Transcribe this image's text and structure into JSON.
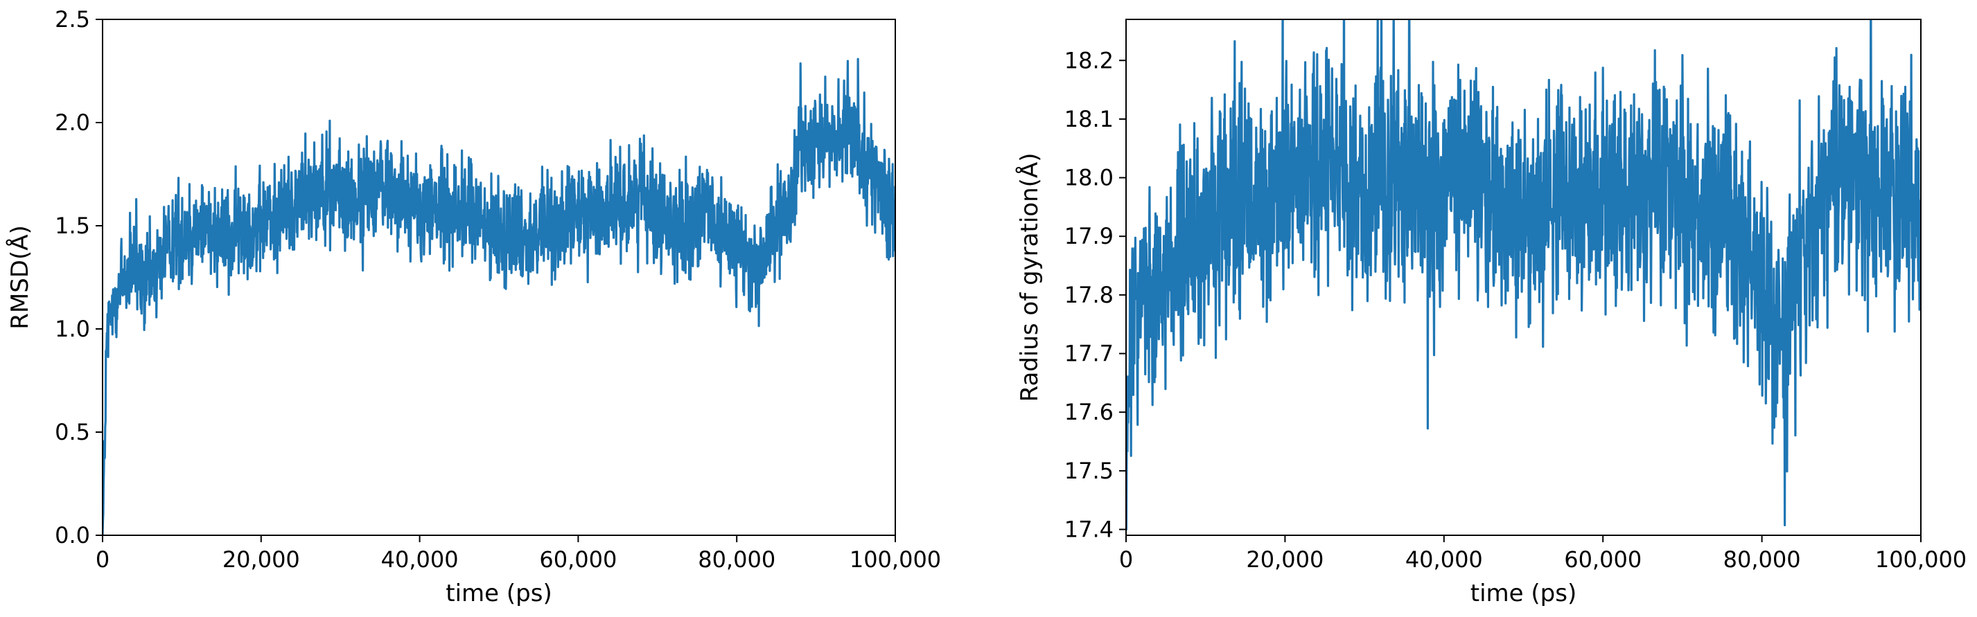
{
  "chart_data": [
    {
      "type": "line",
      "title": "",
      "xlabel": "time (ps)",
      "ylabel": "RMSD(Å)",
      "xlim": [
        0,
        100000
      ],
      "ylim": [
        0,
        2.5
      ],
      "xticks": [
        0,
        20000,
        40000,
        60000,
        80000,
        100000
      ],
      "xtick_labels": [
        "0",
        "20,000",
        "40,000",
        "60,000",
        "80,000",
        "100,000"
      ],
      "yticks": [
        0.0,
        0.5,
        1.0,
        1.5,
        2.0,
        2.5
      ],
      "ytick_labels": [
        "0.0",
        "0.5",
        "1.0",
        "1.5",
        "2.0",
        "2.5"
      ],
      "grid": false,
      "line_color": "#1f77b4",
      "series": [
        {
          "x": [
            0,
            200,
            500,
            1000,
            1500,
            2000,
            3000,
            4000,
            5000,
            6000,
            7000,
            8000,
            9000,
            10000,
            12000,
            14000,
            16000,
            18000,
            20000,
            22000,
            24000,
            26000,
            28000,
            30000,
            32000,
            34000,
            36000,
            38000,
            40000,
            42000,
            44000,
            46000,
            48000,
            50000,
            52000,
            54000,
            56000,
            58000,
            60000,
            62000,
            64000,
            66000,
            68000,
            70000,
            72000,
            74000,
            76000,
            78000,
            80000,
            81000,
            82000,
            83000,
            84000,
            85000,
            86000,
            87000,
            88000,
            89000,
            90000,
            92000,
            94000,
            96000,
            97000,
            98000,
            99000,
            100000
          ],
          "y": [
            0.0,
            0.3,
            0.9,
            1.05,
            1.15,
            1.2,
            1.25,
            1.3,
            1.2,
            1.25,
            1.3,
            1.4,
            1.45,
            1.45,
            1.5,
            1.5,
            1.45,
            1.5,
            1.5,
            1.55,
            1.6,
            1.7,
            1.7,
            1.65,
            1.6,
            1.7,
            1.7,
            1.65,
            1.55,
            1.6,
            1.55,
            1.6,
            1.5,
            1.45,
            1.5,
            1.45,
            1.5,
            1.5,
            1.55,
            1.55,
            1.6,
            1.6,
            1.7,
            1.55,
            1.5,
            1.5,
            1.55,
            1.45,
            1.45,
            1.35,
            1.25,
            1.3,
            1.45,
            1.5,
            1.5,
            1.6,
            1.9,
            1.9,
            1.95,
            1.9,
            1.95,
            1.9,
            1.75,
            1.7,
            1.55,
            1.55
          ],
          "noise": 0.12
        }
      ]
    },
    {
      "type": "line",
      "title": "",
      "xlabel": "time (ps)",
      "ylabel": "Radius of gyration(Å)",
      "xlim": [
        0,
        100000
      ],
      "ylim": [
        17.39,
        18.27
      ],
      "xticks": [
        0,
        20000,
        40000,
        60000,
        80000,
        100000
      ],
      "xtick_labels": [
        "0",
        "20,000",
        "40,000",
        "60,000",
        "80,000",
        "100,000"
      ],
      "yticks": [
        17.4,
        17.5,
        17.6,
        17.7,
        17.8,
        17.9,
        18.0,
        18.1,
        18.2
      ],
      "ytick_labels": [
        "17.4",
        "17.5",
        "17.6",
        "17.7",
        "17.8",
        "17.9",
        "18.0",
        "18.1",
        "18.2"
      ],
      "grid": false,
      "line_color": "#1f77b4",
      "series": [
        {
          "x": [
            0,
            300,
            800,
            1500,
            2500,
            3500,
            5000,
            6500,
            8000,
            10000,
            12000,
            14000,
            16000,
            18000,
            20000,
            22000,
            24000,
            26000,
            28000,
            30000,
            32000,
            34000,
            36000,
            38000,
            40000,
            42000,
            44000,
            46000,
            48000,
            50000,
            52000,
            54000,
            56000,
            58000,
            60000,
            62000,
            64000,
            66000,
            68000,
            70000,
            72000,
            74000,
            76000,
            78000,
            79000,
            80000,
            81000,
            82000,
            83000,
            84000,
            85000,
            86000,
            87000,
            88000,
            90000,
            92000,
            94000,
            96000,
            98000,
            100000
          ],
          "y": [
            17.42,
            17.6,
            17.75,
            17.8,
            17.82,
            17.82,
            17.85,
            17.85,
            17.88,
            17.9,
            17.93,
            17.95,
            17.97,
            17.95,
            17.97,
            18.0,
            18.02,
            18.0,
            17.98,
            17.97,
            18.0,
            18.0,
            17.98,
            17.97,
            17.98,
            18.0,
            18.0,
            17.96,
            17.95,
            17.95,
            17.95,
            17.96,
            17.97,
            17.96,
            17.95,
            17.96,
            17.97,
            17.98,
            18.0,
            17.98,
            17.96,
            17.95,
            17.93,
            17.9,
            17.85,
            17.8,
            17.75,
            17.72,
            17.75,
            17.8,
            17.85,
            17.9,
            17.95,
            17.98,
            18.0,
            17.98,
            17.98,
            17.97,
            17.96,
            17.95
          ],
          "noise": 0.09
        }
      ]
    }
  ]
}
